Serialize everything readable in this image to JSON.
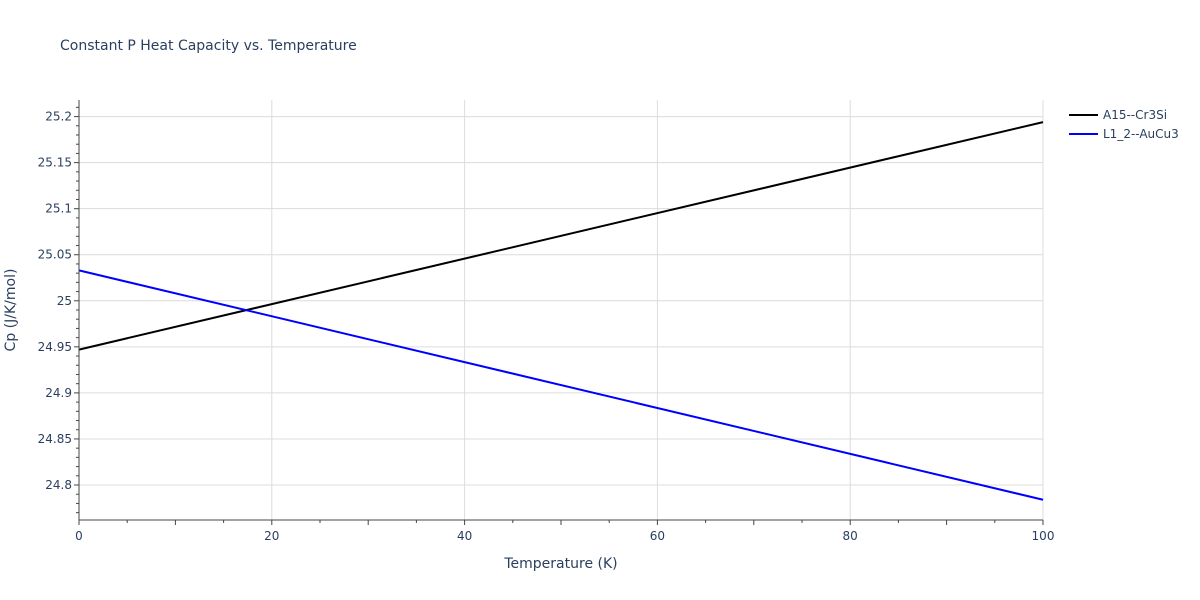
{
  "chart_data": {
    "type": "line",
    "title": "Constant P Heat Capacity vs. Temperature",
    "xlabel": "Temperature (K)",
    "ylabel": "Cp (J/K/mol)",
    "xlim": [
      0,
      100
    ],
    "ylim": [
      24.762,
      25.218
    ],
    "x_ticks": [
      0,
      20,
      40,
      60,
      80,
      100
    ],
    "x_tick_labels": [
      "0",
      "20",
      "40",
      "60",
      "80",
      "100"
    ],
    "y_ticks": [
      24.8,
      24.85,
      24.9,
      24.95,
      25,
      25.05,
      25.1,
      25.15,
      25.2
    ],
    "y_tick_labels": [
      "24.8",
      "24.85",
      "24.9",
      "24.95",
      "25",
      "25.05",
      "25.1",
      "25.15",
      "25.2"
    ],
    "grid": true,
    "legend_position": "top-right-outside",
    "series": [
      {
        "name": "A15--Cr3Si",
        "color": "#000000",
        "x": [
          0,
          100
        ],
        "y": [
          24.947,
          25.194
        ]
      },
      {
        "name": "L1_2--AuCu3",
        "color": "#0000ff",
        "x": [
          0,
          100
        ],
        "y": [
          25.033,
          24.784
        ]
      }
    ]
  }
}
